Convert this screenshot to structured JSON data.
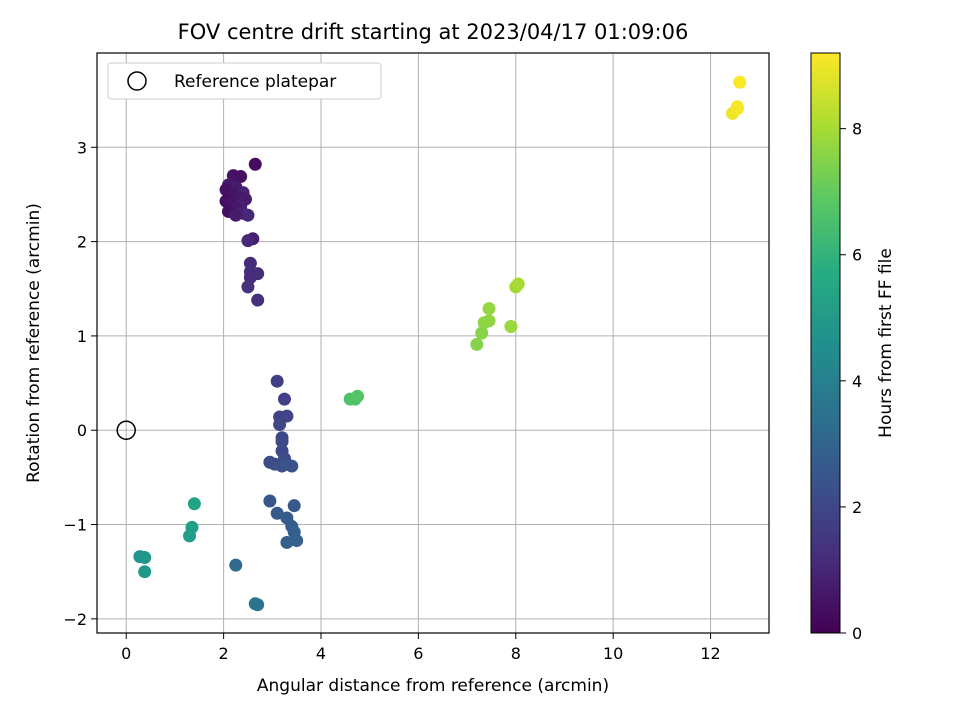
{
  "chart_data": {
    "type": "scatter",
    "title": "FOV centre drift starting at 2023/04/17 01:09:06",
    "xlabel": "Angular distance from reference (arcmin)",
    "ylabel": "Rotation from reference (arcmin)",
    "colorbar_label": "Hours from first FF file",
    "xlim": [
      -0.6,
      13.2
    ],
    "ylim": [
      -2.15,
      4.0
    ],
    "color_range": [
      0,
      9.2
    ],
    "x_ticks": [
      0,
      2,
      4,
      6,
      8,
      10,
      12
    ],
    "y_ticks": [
      -2,
      -1,
      0,
      1,
      2,
      3
    ],
    "colorbar_ticks": [
      0,
      2,
      4,
      6,
      8
    ],
    "grid": true,
    "colormap": "viridis",
    "legend": {
      "position": "top-left",
      "entries": [
        "Reference platepar"
      ]
    },
    "reference_point": {
      "x": 0,
      "y": 0
    },
    "points": [
      {
        "x": 2.65,
        "y": 2.82,
        "t": 0.3
      },
      {
        "x": 2.2,
        "y": 2.7,
        "t": 0.5
      },
      {
        "x": 2.35,
        "y": 2.69,
        "t": 0.4
      },
      {
        "x": 2.1,
        "y": 2.6,
        "t": 0.6
      },
      {
        "x": 2.25,
        "y": 2.58,
        "t": 0.7
      },
      {
        "x": 2.05,
        "y": 2.55,
        "t": 0.4
      },
      {
        "x": 2.4,
        "y": 2.52,
        "t": 0.9
      },
      {
        "x": 2.2,
        "y": 2.5,
        "t": 0.5
      },
      {
        "x": 2.3,
        "y": 2.47,
        "t": 0.6
      },
      {
        "x": 2.45,
        "y": 2.45,
        "t": 0.7
      },
      {
        "x": 2.05,
        "y": 2.43,
        "t": 0.3
      },
      {
        "x": 2.15,
        "y": 2.4,
        "t": 0.5
      },
      {
        "x": 2.35,
        "y": 2.38,
        "t": 0.8
      },
      {
        "x": 2.25,
        "y": 2.35,
        "t": 0.6
      },
      {
        "x": 2.1,
        "y": 2.32,
        "t": 0.4
      },
      {
        "x": 2.4,
        "y": 2.3,
        "t": 0.9
      },
      {
        "x": 2.5,
        "y": 2.28,
        "t": 1.0
      },
      {
        "x": 2.25,
        "y": 2.28,
        "t": 0.7
      },
      {
        "x": 2.6,
        "y": 2.03,
        "t": 0.8
      },
      {
        "x": 2.5,
        "y": 2.01,
        "t": 1.0
      },
      {
        "x": 2.55,
        "y": 1.77,
        "t": 1.1
      },
      {
        "x": 2.55,
        "y": 1.68,
        "t": 1.2
      },
      {
        "x": 2.55,
        "y": 1.62,
        "t": 1.15
      },
      {
        "x": 2.7,
        "y": 1.66,
        "t": 1.2
      },
      {
        "x": 2.5,
        "y": 1.52,
        "t": 1.3
      },
      {
        "x": 2.7,
        "y": 1.38,
        "t": 1.3
      },
      {
        "x": 3.1,
        "y": 0.52,
        "t": 1.7
      },
      {
        "x": 3.25,
        "y": 0.33,
        "t": 1.75
      },
      {
        "x": 3.15,
        "y": 0.14,
        "t": 1.8
      },
      {
        "x": 3.3,
        "y": 0.15,
        "t": 1.85
      },
      {
        "x": 3.15,
        "y": 0.06,
        "t": 1.9
      },
      {
        "x": 3.2,
        "y": -0.08,
        "t": 1.95
      },
      {
        "x": 3.2,
        "y": -0.12,
        "t": 2.0
      },
      {
        "x": 3.2,
        "y": -0.22,
        "t": 2.05
      },
      {
        "x": 3.25,
        "y": -0.3,
        "t": 2.1
      },
      {
        "x": 2.95,
        "y": -0.34,
        "t": 2.15
      },
      {
        "x": 3.05,
        "y": -0.36,
        "t": 2.2
      },
      {
        "x": 3.2,
        "y": -0.38,
        "t": 2.25
      },
      {
        "x": 3.3,
        "y": -0.36,
        "t": 2.3
      },
      {
        "x": 3.4,
        "y": -0.38,
        "t": 2.35
      },
      {
        "x": 2.95,
        "y": -0.75,
        "t": 2.5
      },
      {
        "x": 3.45,
        "y": -0.8,
        "t": 2.55
      },
      {
        "x": 3.1,
        "y": -0.88,
        "t": 2.6
      },
      {
        "x": 3.3,
        "y": -0.93,
        "t": 2.65
      },
      {
        "x": 3.4,
        "y": -1.02,
        "t": 2.7
      },
      {
        "x": 3.45,
        "y": -1.08,
        "t": 2.75
      },
      {
        "x": 3.3,
        "y": -1.19,
        "t": 2.8
      },
      {
        "x": 3.5,
        "y": -1.17,
        "t": 2.85
      },
      {
        "x": 2.25,
        "y": -1.43,
        "t": 3.2
      },
      {
        "x": 2.65,
        "y": -1.84,
        "t": 3.5
      },
      {
        "x": 2.7,
        "y": -1.85,
        "t": 3.55
      },
      {
        "x": 0.28,
        "y": -1.34,
        "t": 4.7
      },
      {
        "x": 0.38,
        "y": -1.35,
        "t": 4.8
      },
      {
        "x": 0.38,
        "y": -1.5,
        "t": 4.9
      },
      {
        "x": 1.3,
        "y": -1.12,
        "t": 5.1
      },
      {
        "x": 1.35,
        "y": -1.03,
        "t": 5.2
      },
      {
        "x": 1.4,
        "y": -0.78,
        "t": 5.3
      },
      {
        "x": 4.6,
        "y": 0.33,
        "t": 6.6
      },
      {
        "x": 4.7,
        "y": 0.33,
        "t": 6.65
      },
      {
        "x": 4.75,
        "y": 0.36,
        "t": 6.7
      },
      {
        "x": 7.2,
        "y": 0.91,
        "t": 7.5
      },
      {
        "x": 7.3,
        "y": 1.03,
        "t": 7.55
      },
      {
        "x": 7.35,
        "y": 1.14,
        "t": 7.6
      },
      {
        "x": 7.45,
        "y": 1.16,
        "t": 7.65
      },
      {
        "x": 7.45,
        "y": 1.29,
        "t": 7.7
      },
      {
        "x": 7.9,
        "y": 1.1,
        "t": 7.8
      },
      {
        "x": 8.0,
        "y": 1.52,
        "t": 7.9
      },
      {
        "x": 8.05,
        "y": 1.55,
        "t": 8.0
      },
      {
        "x": 12.45,
        "y": 3.36,
        "t": 9.0
      },
      {
        "x": 12.55,
        "y": 3.41,
        "t": 9.05
      },
      {
        "x": 12.55,
        "y": 3.43,
        "t": 9.1
      },
      {
        "x": 12.6,
        "y": 3.69,
        "t": 9.15
      }
    ]
  }
}
